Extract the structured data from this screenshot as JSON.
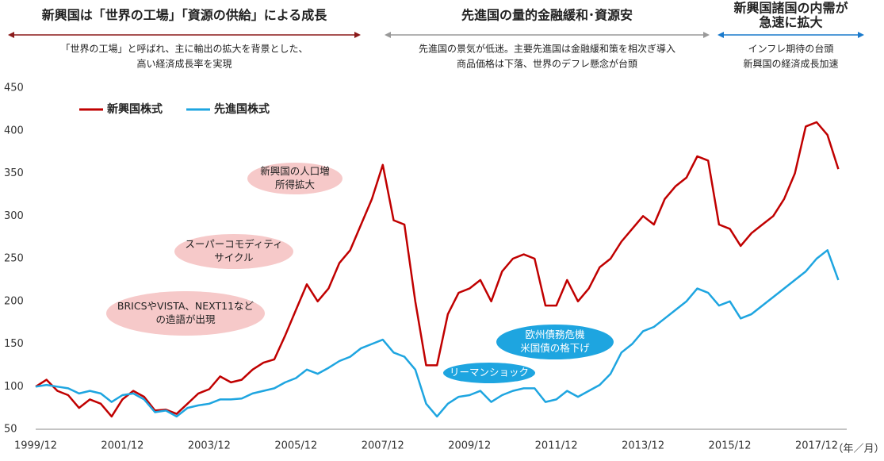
{
  "chart_data": {
    "type": "line",
    "periods": [
      {
        "title": [
          "新興国は「世界の工場」「資源の供給」による成長"
        ],
        "description": [
          "「世界の工場」と呼ばれ、主に輸出の拡大を背景とした、",
          "高い経済成長率を実現"
        ],
        "color": "#8b1a1a"
      },
      {
        "title": [
          "先進国の量的金融緩和･資源安"
        ],
        "description": [
          "先進国の景気が低迷。主要先進国は金融緩和策を相次ぎ導入",
          "商品価格は下落、世界のデフレ懸念が台頭"
        ],
        "color": "#999999"
      },
      {
        "title": [
          "新興国諸国の内需が",
          "急速に拡大"
        ],
        "description": [
          "インフレ期待の台頭",
          "新興国の経済成長加速"
        ],
        "color": "#1a7acc"
      }
    ],
    "annotations": [
      {
        "lines": [
          "新興国の人口増",
          "所得拡大"
        ],
        "color": "#f6c9c9"
      },
      {
        "lines": [
          "スーパーコモディティ",
          "サイクル"
        ],
        "color": "#f6c9c9"
      },
      {
        "lines": [
          "BRICSやVISTA、NEXT11など",
          "の造語が出現"
        ],
        "color": "#f6c9c9"
      },
      {
        "lines": [
          "欧州債務危機",
          "米国債の格下げ"
        ],
        "color": "#1ea5e0"
      },
      {
        "lines": [
          "リーマンショック"
        ],
        "color": "#1ea5e0"
      }
    ],
    "x_label": "（年／月）",
    "x": [
      "1999/12",
      "2000/03",
      "2000/06",
      "2000/09",
      "2000/12",
      "2001/03",
      "2001/06",
      "2001/09",
      "2001/12",
      "2002/03",
      "2002/06",
      "2002/09",
      "2002/12",
      "2003/03",
      "2003/06",
      "2003/09",
      "2003/12",
      "2004/03",
      "2004/06",
      "2004/09",
      "2004/12",
      "2005/03",
      "2005/06",
      "2005/09",
      "2005/12",
      "2006/03",
      "2006/06",
      "2006/09",
      "2006/12",
      "2007/03",
      "2007/06",
      "2007/09",
      "2007/12",
      "2008/03",
      "2008/06",
      "2008/09",
      "2008/12",
      "2009/03",
      "2009/06",
      "2009/09",
      "2009/12",
      "2010/03",
      "2010/06",
      "2010/09",
      "2010/12",
      "2011/03",
      "2011/06",
      "2011/09",
      "2011/12",
      "2012/03",
      "2012/06",
      "2012/09",
      "2012/12",
      "2013/03",
      "2013/06",
      "2013/09",
      "2013/12",
      "2014/03",
      "2014/06",
      "2014/09",
      "2014/12",
      "2015/03",
      "2015/06",
      "2015/09",
      "2015/12",
      "2016/03",
      "2016/06",
      "2016/09",
      "2016/12",
      "2017/03",
      "2017/06",
      "2017/09",
      "2017/12",
      "2018/03",
      "2018/06"
    ],
    "xticks": [
      "1999/12",
      "2001/12",
      "2003/12",
      "2005/12",
      "2007/12",
      "2009/12",
      "2011/12",
      "2013/12",
      "2015/12",
      "2017/12"
    ],
    "ylim": [
      50,
      450
    ],
    "yticks": [
      50,
      100,
      150,
      200,
      250,
      300,
      350,
      400,
      450
    ],
    "legend": "upper left",
    "series": [
      {
        "name": "新興国株式",
        "color": "#c00000",
        "values": [
          100,
          108,
          95,
          90,
          75,
          85,
          80,
          65,
          85,
          95,
          88,
          72,
          73,
          68,
          80,
          92,
          97,
          112,
          105,
          108,
          120,
          128,
          132,
          160,
          190,
          220,
          200,
          215,
          245,
          260,
          290,
          320,
          360,
          295,
          290,
          200,
          125,
          125,
          185,
          210,
          215,
          225,
          200,
          235,
          250,
          255,
          250,
          195,
          195,
          225,
          200,
          215,
          240,
          250,
          270,
          285,
          300,
          290,
          320,
          335,
          345,
          370,
          365,
          290,
          285,
          265,
          280,
          290,
          300,
          320,
          350,
          405,
          410,
          395,
          355
        ]
      },
      {
        "name": "先進国株式",
        "color": "#1ea5e0",
        "values": [
          100,
          102,
          100,
          98,
          92,
          95,
          92,
          82,
          90,
          92,
          85,
          70,
          72,
          65,
          75,
          78,
          80,
          85,
          85,
          86,
          92,
          95,
          98,
          105,
          110,
          120,
          115,
          122,
          130,
          135,
          145,
          150,
          155,
          140,
          135,
          120,
          80,
          65,
          80,
          88,
          90,
          95,
          82,
          90,
          95,
          98,
          98,
          82,
          85,
          95,
          88,
          95,
          102,
          115,
          140,
          150,
          165,
          170,
          180,
          190,
          200,
          215,
          210,
          195,
          200,
          180,
          185,
          195,
          205,
          215,
          225,
          235,
          250,
          260,
          225
        ]
      }
    ]
  }
}
